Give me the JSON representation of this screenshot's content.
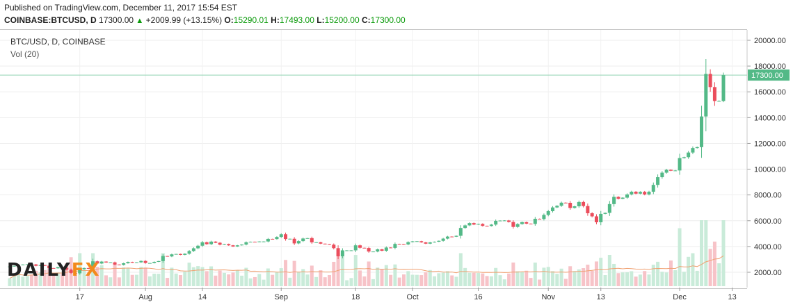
{
  "header": {
    "published": "Published on TradingView.com, December 11, 2017 15:54 EST",
    "symbol": "COINBASE:BTCUSD, D",
    "price": "17300.00",
    "change": "+2009.99 (+13.15%)",
    "o_label": "O:",
    "o_value": "15290.01",
    "h_label": "H:",
    "h_value": "17493.00",
    "l_label": "L:",
    "l_value": "15200.00",
    "c_label": "C:",
    "c_value": "17300.00"
  },
  "legend": {
    "symbol": "BTC/USD, D, COINBASE",
    "volume": "Vol (20)"
  },
  "logo": {
    "part1": "DAILY",
    "part2": "FX"
  },
  "colors": {
    "up": "#53b987",
    "down": "#eb4d5c",
    "vol_up": "#c9ebd9",
    "vol_down": "#f7c3c8",
    "vol_ma": "#f0a070",
    "last_line": "#8fd3b0"
  },
  "chart_data": {
    "type": "candlestick",
    "price_axis": {
      "min": 1000,
      "max": 20500,
      "ticks": [
        "2000.00",
        "4000.00",
        "6000.00",
        "8000.00",
        "10000.00",
        "12000.00",
        "14000.00",
        "16000.00",
        "18000.00",
        "20000.00"
      ],
      "last_price_label": "17300.00",
      "last_price": 17300
    },
    "time_axis_labels": [
      {
        "label": "17",
        "date": "2017-07-17"
      },
      {
        "label": "Aug",
        "date": "2017-08-01"
      },
      {
        "label": "14",
        "date": "2017-08-14"
      },
      {
        "label": "Sep",
        "date": "2017-09-01"
      },
      {
        "label": "18",
        "date": "2017-09-18"
      },
      {
        "label": "Oct",
        "date": "2017-10-01"
      },
      {
        "label": "16",
        "date": "2017-10-16"
      },
      {
        "label": "Nov",
        "date": "2017-11-01"
      },
      {
        "label": "13",
        "date": "2017-11-13"
      },
      {
        "label": "Dec",
        "date": "2017-12-01"
      },
      {
        "label": "13",
        "date": "2017-12-13"
      }
    ],
    "candles": [
      {
        "date": "2017-07-01",
        "c": 2450
      },
      {
        "date": "2017-07-02",
        "c": 2500
      },
      {
        "date": "2017-07-03",
        "c": 2560
      },
      {
        "date": "2017-07-04",
        "c": 2600
      },
      {
        "date": "2017-07-05",
        "c": 2620
      },
      {
        "date": "2017-07-06",
        "c": 2610
      },
      {
        "date": "2017-07-07",
        "c": 2500
      },
      {
        "date": "2017-07-08",
        "c": 2560
      },
      {
        "date": "2017-07-09",
        "c": 2500
      },
      {
        "date": "2017-07-10",
        "c": 2330
      },
      {
        "date": "2017-07-11",
        "c": 2310
      },
      {
        "date": "2017-07-12",
        "c": 2400
      },
      {
        "date": "2017-07-13",
        "c": 2350
      },
      {
        "date": "2017-07-14",
        "c": 2200
      },
      {
        "date": "2017-07-15",
        "c": 1950
      },
      {
        "date": "2017-07-16",
        "c": 1920
      },
      {
        "date": "2017-07-17",
        "c": 2230
      },
      {
        "date": "2017-07-18",
        "c": 2330
      },
      {
        "date": "2017-07-19",
        "c": 2270
      },
      {
        "date": "2017-07-20",
        "c": 2850
      },
      {
        "date": "2017-07-21",
        "c": 2680
      },
      {
        "date": "2017-07-22",
        "c": 2830
      },
      {
        "date": "2017-07-23",
        "c": 2760
      },
      {
        "date": "2017-07-24",
        "c": 2770
      },
      {
        "date": "2017-07-25",
        "c": 2600
      },
      {
        "date": "2017-07-26",
        "c": 2570
      },
      {
        "date": "2017-07-27",
        "c": 2700
      },
      {
        "date": "2017-07-28",
        "c": 2800
      },
      {
        "date": "2017-07-29",
        "c": 2740
      },
      {
        "date": "2017-07-30",
        "c": 2770
      },
      {
        "date": "2017-07-31",
        "c": 2880
      },
      {
        "date": "2017-08-01",
        "c": 2720
      },
      {
        "date": "2017-08-02",
        "c": 2720
      },
      {
        "date": "2017-08-03",
        "c": 2810
      },
      {
        "date": "2017-08-04",
        "c": 2870
      },
      {
        "date": "2017-08-05",
        "c": 3260
      },
      {
        "date": "2017-08-06",
        "c": 3230
      },
      {
        "date": "2017-08-07",
        "c": 3390
      },
      {
        "date": "2017-08-08",
        "c": 3420
      },
      {
        "date": "2017-08-09",
        "c": 3350
      },
      {
        "date": "2017-08-10",
        "c": 3440
      },
      {
        "date": "2017-08-11",
        "c": 3650
      },
      {
        "date": "2017-08-12",
        "c": 3860
      },
      {
        "date": "2017-08-13",
        "c": 4060
      },
      {
        "date": "2017-08-14",
        "c": 4330
      },
      {
        "date": "2017-08-15",
        "c": 4180
      },
      {
        "date": "2017-08-16",
        "c": 4380
      },
      {
        "date": "2017-08-17",
        "c": 4290
      },
      {
        "date": "2017-08-18",
        "c": 4140
      },
      {
        "date": "2017-08-19",
        "c": 4190
      },
      {
        "date": "2017-08-20",
        "c": 4090
      },
      {
        "date": "2017-08-21",
        "c": 4000
      },
      {
        "date": "2017-08-22",
        "c": 4090
      },
      {
        "date": "2017-08-23",
        "c": 4150
      },
      {
        "date": "2017-08-24",
        "c": 4330
      },
      {
        "date": "2017-08-25",
        "c": 4370
      },
      {
        "date": "2017-08-26",
        "c": 4350
      },
      {
        "date": "2017-08-27",
        "c": 4390
      },
      {
        "date": "2017-08-28",
        "c": 4390
      },
      {
        "date": "2017-08-29",
        "c": 4590
      },
      {
        "date": "2017-08-30",
        "c": 4580
      },
      {
        "date": "2017-08-31",
        "c": 4740
      },
      {
        "date": "2017-09-01",
        "c": 4950
      },
      {
        "date": "2017-09-02",
        "c": 4580
      },
      {
        "date": "2017-09-03",
        "c": 4600
      },
      {
        "date": "2017-09-04",
        "c": 4240
      },
      {
        "date": "2017-09-05",
        "c": 4420
      },
      {
        "date": "2017-09-06",
        "c": 4620
      },
      {
        "date": "2017-09-07",
        "c": 4650
      },
      {
        "date": "2017-09-08",
        "c": 4320
      },
      {
        "date": "2017-09-09",
        "c": 4330
      },
      {
        "date": "2017-09-10",
        "c": 4220
      },
      {
        "date": "2017-09-11",
        "c": 4180
      },
      {
        "date": "2017-09-12",
        "c": 4140
      },
      {
        "date": "2017-09-13",
        "c": 3870
      },
      {
        "date": "2017-09-14",
        "c": 3240
      },
      {
        "date": "2017-09-15",
        "c": 3700
      },
      {
        "date": "2017-09-16",
        "c": 3700
      },
      {
        "date": "2017-09-17",
        "c": 3700
      },
      {
        "date": "2017-09-18",
        "c": 4090
      },
      {
        "date": "2017-09-19",
        "c": 3900
      },
      {
        "date": "2017-09-20",
        "c": 3880
      },
      {
        "date": "2017-09-21",
        "c": 3610
      },
      {
        "date": "2017-09-22",
        "c": 3610
      },
      {
        "date": "2017-09-23",
        "c": 3780
      },
      {
        "date": "2017-09-24",
        "c": 3670
      },
      {
        "date": "2017-09-25",
        "c": 3920
      },
      {
        "date": "2017-09-26",
        "c": 3890
      },
      {
        "date": "2017-09-27",
        "c": 4200
      },
      {
        "date": "2017-09-28",
        "c": 4190
      },
      {
        "date": "2017-09-29",
        "c": 4160
      },
      {
        "date": "2017-09-30",
        "c": 4340
      },
      {
        "date": "2017-10-01",
        "c": 4400
      },
      {
        "date": "2017-10-02",
        "c": 4410
      },
      {
        "date": "2017-10-03",
        "c": 4320
      },
      {
        "date": "2017-10-04",
        "c": 4220
      },
      {
        "date": "2017-10-05",
        "c": 4320
      },
      {
        "date": "2017-10-06",
        "c": 4370
      },
      {
        "date": "2017-10-07",
        "c": 4440
      },
      {
        "date": "2017-10-08",
        "c": 4610
      },
      {
        "date": "2017-10-09",
        "c": 4770
      },
      {
        "date": "2017-10-10",
        "c": 4760
      },
      {
        "date": "2017-10-11",
        "c": 4830
      },
      {
        "date": "2017-10-12",
        "c": 5440
      },
      {
        "date": "2017-10-13",
        "c": 5640
      },
      {
        "date": "2017-10-14",
        "c": 5820
      },
      {
        "date": "2017-10-15",
        "c": 5700
      },
      {
        "date": "2017-10-16",
        "c": 5750
      },
      {
        "date": "2017-10-17",
        "c": 5600
      },
      {
        "date": "2017-10-18",
        "c": 5590
      },
      {
        "date": "2017-10-19",
        "c": 5700
      },
      {
        "date": "2017-10-20",
        "c": 5990
      },
      {
        "date": "2017-10-21",
        "c": 6010
      },
      {
        "date": "2017-10-22",
        "c": 6020
      },
      {
        "date": "2017-10-23",
        "c": 5900
      },
      {
        "date": "2017-10-24",
        "c": 5520
      },
      {
        "date": "2017-10-25",
        "c": 5740
      },
      {
        "date": "2017-10-26",
        "c": 5890
      },
      {
        "date": "2017-10-27",
        "c": 5770
      },
      {
        "date": "2017-10-28",
        "c": 5750
      },
      {
        "date": "2017-10-29",
        "c": 6150
      },
      {
        "date": "2017-10-30",
        "c": 6130
      },
      {
        "date": "2017-10-31",
        "c": 6450
      },
      {
        "date": "2017-11-01",
        "c": 6740
      },
      {
        "date": "2017-11-02",
        "c": 7030
      },
      {
        "date": "2017-11-03",
        "c": 7160
      },
      {
        "date": "2017-11-04",
        "c": 7400
      },
      {
        "date": "2017-11-05",
        "c": 7390
      },
      {
        "date": "2017-11-06",
        "c": 6990
      },
      {
        "date": "2017-11-07",
        "c": 7120
      },
      {
        "date": "2017-11-08",
        "c": 7450
      },
      {
        "date": "2017-11-09",
        "c": 7140
      },
      {
        "date": "2017-11-10",
        "c": 6580
      },
      {
        "date": "2017-11-11",
        "c": 6340
      },
      {
        "date": "2017-11-12",
        "c": 5880
      },
      {
        "date": "2017-11-13",
        "c": 6530
      },
      {
        "date": "2017-11-14",
        "c": 6610
      },
      {
        "date": "2017-11-15",
        "c": 7290
      },
      {
        "date": "2017-11-16",
        "c": 7850
      },
      {
        "date": "2017-11-17",
        "c": 7700
      },
      {
        "date": "2017-11-18",
        "c": 7790
      },
      {
        "date": "2017-11-19",
        "c": 8040
      },
      {
        "date": "2017-11-20",
        "c": 8250
      },
      {
        "date": "2017-11-21",
        "c": 8100
      },
      {
        "date": "2017-11-22",
        "c": 8240
      },
      {
        "date": "2017-11-23",
        "c": 8040
      },
      {
        "date": "2017-11-24",
        "c": 8250
      },
      {
        "date": "2017-11-25",
        "c": 8780
      },
      {
        "date": "2017-11-26",
        "c": 9380
      },
      {
        "date": "2017-11-27",
        "c": 9730
      },
      {
        "date": "2017-11-28",
        "c": 9950
      },
      {
        "date": "2017-11-29",
        "c": 9880
      },
      {
        "date": "2017-11-30",
        "c": 9900
      },
      {
        "date": "2017-12-01",
        "c": 10860
      },
      {
        "date": "2017-12-02",
        "c": 10930
      },
      {
        "date": "2017-12-03",
        "c": 11290
      },
      {
        "date": "2017-12-04",
        "c": 11640
      },
      {
        "date": "2017-12-05",
        "c": 11710
      },
      {
        "date": "2017-12-06",
        "c": 14090
      },
      {
        "date": "2017-12-07",
        "c": 17390
      },
      {
        "date": "2017-12-08",
        "c": 16370
      },
      {
        "date": "2017-12-09",
        "c": 15290
      },
      {
        "date": "2017-12-10",
        "c": 15290
      },
      {
        "date": "2017-12-11",
        "o": 15290.01,
        "h": 17493.0,
        "l": 15200.0,
        "c": 17300.0
      }
    ],
    "volume_ma_period": 20
  }
}
